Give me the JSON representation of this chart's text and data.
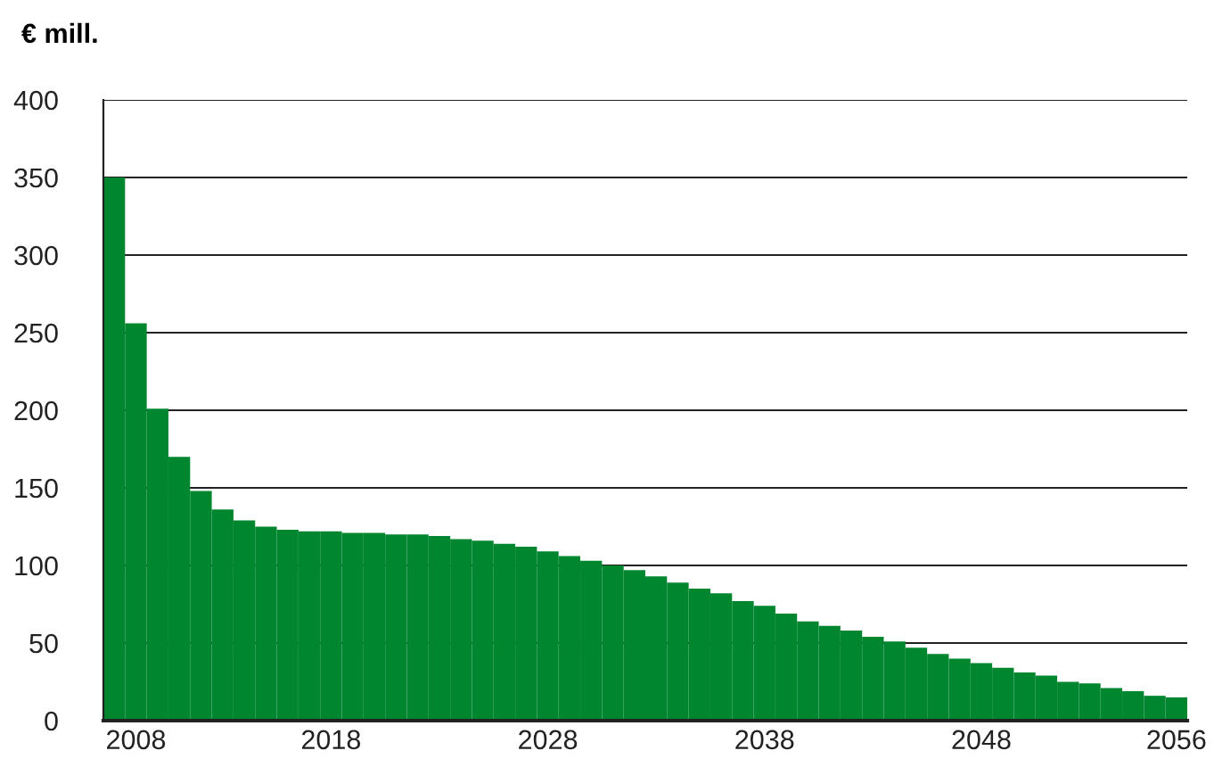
{
  "chart_data": {
    "type": "bar",
    "ylabel": "€ mill.",
    "categories": [
      null,
      "2008",
      null,
      null,
      null,
      null,
      null,
      null,
      null,
      null,
      "2018",
      null,
      null,
      null,
      null,
      null,
      null,
      null,
      null,
      null,
      "2028",
      null,
      null,
      null,
      null,
      null,
      null,
      null,
      null,
      null,
      "2038",
      null,
      null,
      null,
      null,
      null,
      null,
      null,
      null,
      null,
      "2048",
      null,
      null,
      null,
      null,
      null,
      null,
      null,
      null,
      "2056"
    ],
    "values": [
      350,
      256,
      201,
      170,
      148,
      136,
      129,
      125,
      123,
      122,
      122,
      121,
      121,
      120,
      120,
      119,
      117,
      116,
      114,
      112,
      109,
      106,
      103,
      100,
      97,
      93,
      89,
      85,
      82,
      77,
      74,
      69,
      64,
      61,
      58,
      54,
      51,
      47,
      43,
      40,
      37,
      34,
      31,
      29,
      25,
      24,
      21,
      19,
      16,
      15
    ],
    "color": "#00862f",
    "ylim": [
      0,
      400
    ],
    "yticks": [
      0,
      50,
      100,
      150,
      200,
      250,
      300,
      350,
      400
    ],
    "grid": "y",
    "legend": false
  }
}
